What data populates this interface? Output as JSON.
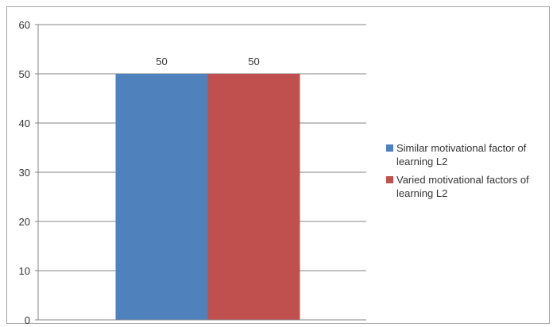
{
  "chart_data": {
    "type": "bar",
    "categories": [
      ""
    ],
    "series": [
      {
        "name": "Similar motivational factor of learning L2",
        "values": [
          50
        ],
        "color": "#4f81bd"
      },
      {
        "name": "Varied motivational factors of learning L2",
        "values": [
          50
        ],
        "color": "#c0504d"
      }
    ],
    "title": "",
    "xlabel": "",
    "ylabel": "",
    "ylim": [
      0,
      60
    ],
    "yticks": [
      "0",
      "10",
      "20",
      "30",
      "40",
      "50",
      "60"
    ],
    "data_labels": [
      "50",
      "50"
    ],
    "grid": true,
    "legend": "right"
  }
}
